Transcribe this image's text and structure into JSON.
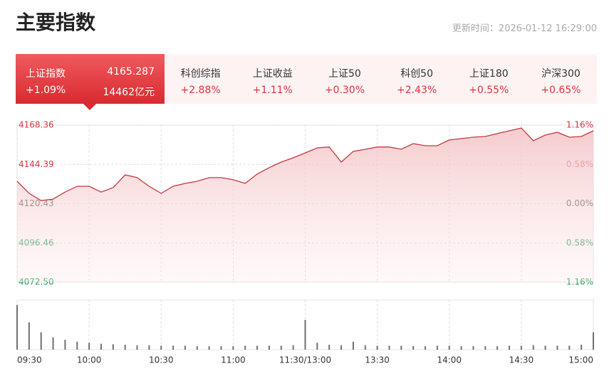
{
  "header": {
    "title": "主要指数",
    "update_label": "更新时间：",
    "update_time": "2026-01-12 16:29:00"
  },
  "tabs": [
    {
      "name": "上证指数",
      "price": "4165.287",
      "change": "+1.09%",
      "turnover": "14462亿元"
    },
    {
      "name": "科创综指",
      "change": "+2.88%"
    },
    {
      "name": "上证收益",
      "change": "+1.11%"
    },
    {
      "name": "上证50",
      "change": "+0.30%"
    },
    {
      "name": "科创50",
      "change": "+2.43%"
    },
    {
      "name": "上证180",
      "change": "+0.55%"
    },
    {
      "name": "沪深300",
      "change": "+0.65%"
    }
  ],
  "chart_data": [
    {
      "type": "line",
      "color": "#c23a3f",
      "values": [
        4134.1,
        4126.7,
        4122.3,
        4123.2,
        4127.5,
        4131.0,
        4131.0,
        4127.5,
        4130.2,
        4138.0,
        4136.3,
        4131.0,
        4126.7,
        4131.0,
        4132.8,
        4134.1,
        4136.3,
        4136.3,
        4135.0,
        4132.8,
        4138.5,
        4142.4,
        4145.8,
        4148.4,
        4151.4,
        4154.5,
        4155.0,
        4145.8,
        4152.3,
        4153.6,
        4155.0,
        4155.0,
        4153.6,
        4157.1,
        4155.8,
        4155.8,
        4159.3,
        4160.1,
        4161.0,
        4161.4,
        4163.2,
        4164.9,
        4166.6,
        4158.8,
        4162.3,
        4164.0,
        4161.0,
        4161.4,
        4164.9
      ],
      "ylim": [
        4072.5,
        4168.36
      ],
      "yticks": [
        {
          "value": 4072.5,
          "label": "4072.50"
        },
        4096.46,
        4120.43,
        4144.39,
        4168.36
      ],
      "y2lim": [
        -1.16,
        1.16
      ],
      "y2ticks": [
        {
          "value": -1.16,
          "label": "1.16%"
        },
        {
          "value": -0.58,
          "label": "0.58%"
        },
        {
          "value": 0,
          "label": "0.00%"
        },
        {
          "value": 0.58,
          "label": "0.58%"
        },
        {
          "value": 1.16,
          "label": "1.16%"
        }
      ],
      "grid": true
    },
    {
      "type": "bar",
      "color": "#707070",
      "categories": [
        "09:30",
        null,
        null,
        null,
        null,
        null,
        "10:00",
        null,
        null,
        null,
        null,
        null,
        "10:30",
        null,
        null,
        null,
        null,
        null,
        "11:00",
        null,
        null,
        null,
        null,
        null,
        "11:30/13:00",
        null,
        null,
        null,
        null,
        null,
        "13:30",
        null,
        null,
        null,
        null,
        null,
        "14:00",
        null,
        null,
        null,
        null,
        null,
        "14:30",
        null,
        null,
        null,
        null,
        null,
        "15:00"
      ],
      "values": [
        90,
        55,
        35,
        25,
        20,
        16,
        14,
        12,
        11,
        10,
        9,
        9,
        8,
        8,
        8,
        7,
        7,
        7,
        7,
        8,
        8,
        8,
        8,
        9,
        60,
        14,
        10,
        9,
        16,
        9,
        8,
        8,
        8,
        7,
        7,
        8,
        8,
        7,
        7,
        7,
        7,
        8,
        8,
        9,
        8,
        8,
        8,
        10,
        35
      ],
      "ylim": [
        0,
        100
      ]
    }
  ]
}
